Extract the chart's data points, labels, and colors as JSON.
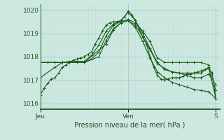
{
  "bg_color": "#cce8e0",
  "plot_bg_color": "#cce8e0",
  "grid_color_major": "#aacccc",
  "grid_color_minor": "#bbddcc",
  "line_color": "#1a5c1a",
  "border_color": "#336633",
  "xlabel": "Pression niveau de la mer( hPa )",
  "ylim": [
    1015.75,
    1020.25
  ],
  "yticks": [
    1016,
    1017,
    1018,
    1019,
    1020
  ],
  "xlim": [
    0,
    49
  ],
  "xtick_labels": [
    "Jeu",
    "Ven",
    "S"
  ],
  "xtick_positions": [
    0,
    24,
    48
  ],
  "lines": [
    [
      0,
      1016.35,
      1,
      1016.65,
      2,
      1016.85,
      3,
      1017.05,
      4,
      1017.1,
      5,
      1017.3,
      6,
      1017.55,
      7,
      1017.65,
      8,
      1017.75,
      9,
      1017.85,
      10,
      1017.9,
      11,
      1017.95,
      12,
      1018.0,
      13,
      1018.1,
      14,
      1018.2,
      15,
      1018.55,
      16,
      1018.8,
      17,
      1019.1,
      18,
      1019.35,
      19,
      1019.45,
      20,
      1019.5,
      21,
      1019.5,
      22,
      1019.55,
      23,
      1019.7,
      24,
      1019.95,
      25,
      1019.8,
      26,
      1019.55,
      27,
      1019.2,
      28,
      1018.85,
      29,
      1018.55,
      30,
      1018.0,
      31,
      1017.55,
      32,
      1017.2,
      33,
      1017.05,
      34,
      1017.0,
      35,
      1017.05,
      36,
      1017.1,
      37,
      1017.1,
      38,
      1017.1,
      39,
      1017.15,
      40,
      1017.25,
      41,
      1017.25,
      42,
      1017.3,
      43,
      1017.35,
      44,
      1017.4,
      45,
      1017.45,
      46,
      1017.5,
      47,
      1017.3,
      48,
      1016.2
    ],
    [
      0,
      1017.1,
      4,
      1017.55,
      6,
      1017.75,
      8,
      1017.8,
      10,
      1017.8,
      12,
      1017.8,
      14,
      1018.05,
      16,
      1018.5,
      18,
      1019.1,
      20,
      1019.4,
      22,
      1019.55,
      24,
      1019.9,
      26,
      1019.55,
      28,
      1019.0,
      30,
      1018.35,
      32,
      1017.75,
      34,
      1017.45,
      36,
      1017.35,
      38,
      1017.3,
      40,
      1017.3,
      42,
      1017.3,
      44,
      1017.3,
      46,
      1017.55,
      48,
      1016.2
    ],
    [
      0,
      1017.75,
      2,
      1017.75,
      4,
      1017.75,
      6,
      1017.75,
      8,
      1017.75,
      10,
      1017.75,
      12,
      1017.75,
      14,
      1017.9,
      16,
      1018.2,
      18,
      1018.9,
      20,
      1019.35,
      22,
      1019.5,
      24,
      1019.6,
      26,
      1019.45,
      28,
      1019.1,
      30,
      1018.65,
      32,
      1017.95,
      34,
      1017.75,
      36,
      1017.75,
      38,
      1017.75,
      40,
      1017.75,
      42,
      1017.75,
      44,
      1017.75,
      46,
      1017.65,
      48,
      1016.55
    ],
    [
      0,
      1017.75,
      4,
      1017.75,
      8,
      1017.75,
      12,
      1017.75,
      16,
      1018.0,
      18,
      1018.7,
      20,
      1019.2,
      22,
      1019.45,
      24,
      1019.55,
      26,
      1019.35,
      28,
      1018.85,
      30,
      1018.3,
      32,
      1017.7,
      34,
      1017.5,
      36,
      1017.35,
      38,
      1017.3,
      40,
      1017.2,
      42,
      1017.1,
      44,
      1017.1,
      46,
      1017.25,
      48,
      1016.8
    ],
    [
      0,
      1017.75,
      6,
      1017.75,
      12,
      1017.75,
      18,
      1018.55,
      20,
      1019.15,
      22,
      1019.45,
      24,
      1019.55,
      26,
      1019.25,
      28,
      1018.65,
      30,
      1017.95,
      32,
      1017.35,
      34,
      1017.1,
      36,
      1016.9,
      38,
      1016.8,
      40,
      1016.7,
      42,
      1016.6,
      44,
      1016.55,
      46,
      1016.5,
      48,
      1016.2
    ]
  ]
}
